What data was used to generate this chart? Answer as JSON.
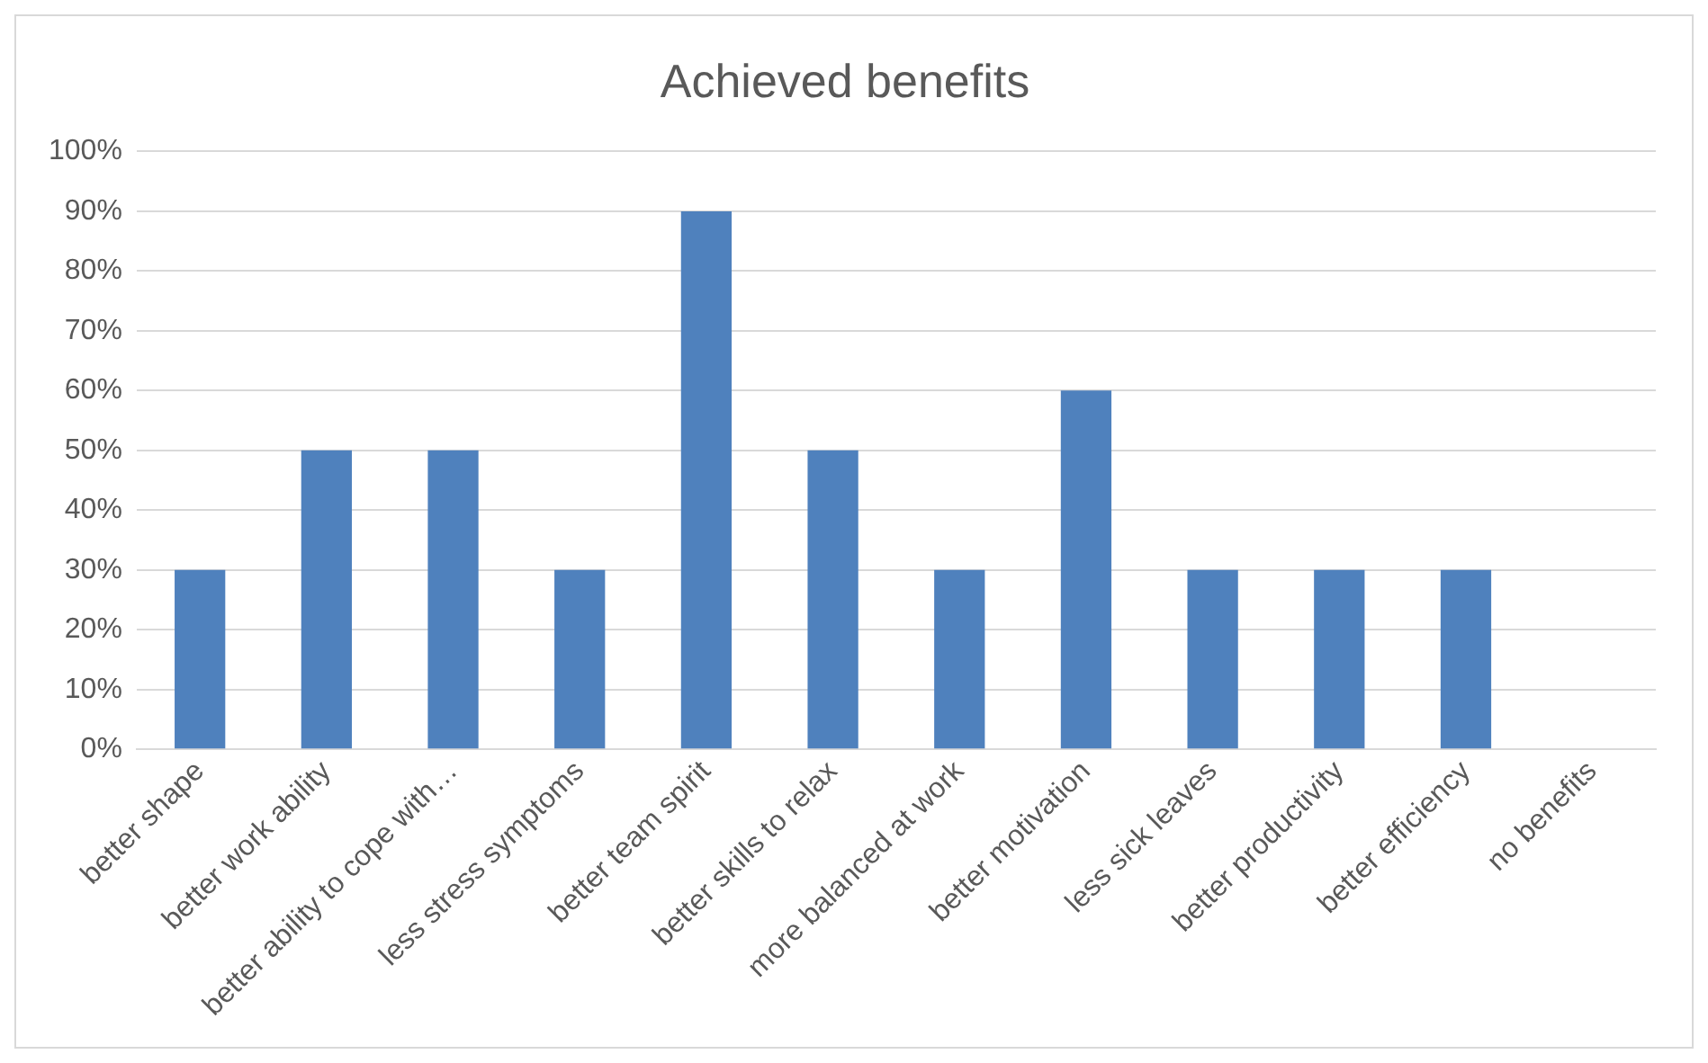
{
  "chart_data": {
    "type": "bar",
    "title": "Achieved benefits",
    "categories": [
      "better shape",
      "better work ability",
      "better ability to cope with…",
      "less stress symptoms",
      "better team spirit",
      "better skills to relax",
      "more balanced at work",
      "better motivation",
      "less sick leaves",
      "better productivity",
      "better efficiency",
      "no benefits"
    ],
    "values": [
      30,
      50,
      50,
      30,
      90,
      50,
      30,
      60,
      30,
      30,
      30,
      0
    ],
    "color": "#4f81bd",
    "ylim": [
      0,
      100
    ],
    "yticks": [
      {
        "value": 0,
        "label": "0%"
      },
      {
        "value": 10,
        "label": "10%"
      },
      {
        "value": 20,
        "label": "20%"
      },
      {
        "value": 30,
        "label": "30%"
      },
      {
        "value": 40,
        "label": "40%"
      },
      {
        "value": 50,
        "label": "50%"
      },
      {
        "value": 60,
        "label": "60%"
      },
      {
        "value": 70,
        "label": "70%"
      },
      {
        "value": 80,
        "label": "80%"
      },
      {
        "value": 90,
        "label": "90%"
      },
      {
        "value": 100,
        "label": "100%"
      }
    ],
    "grid": "y",
    "legend": false
  }
}
